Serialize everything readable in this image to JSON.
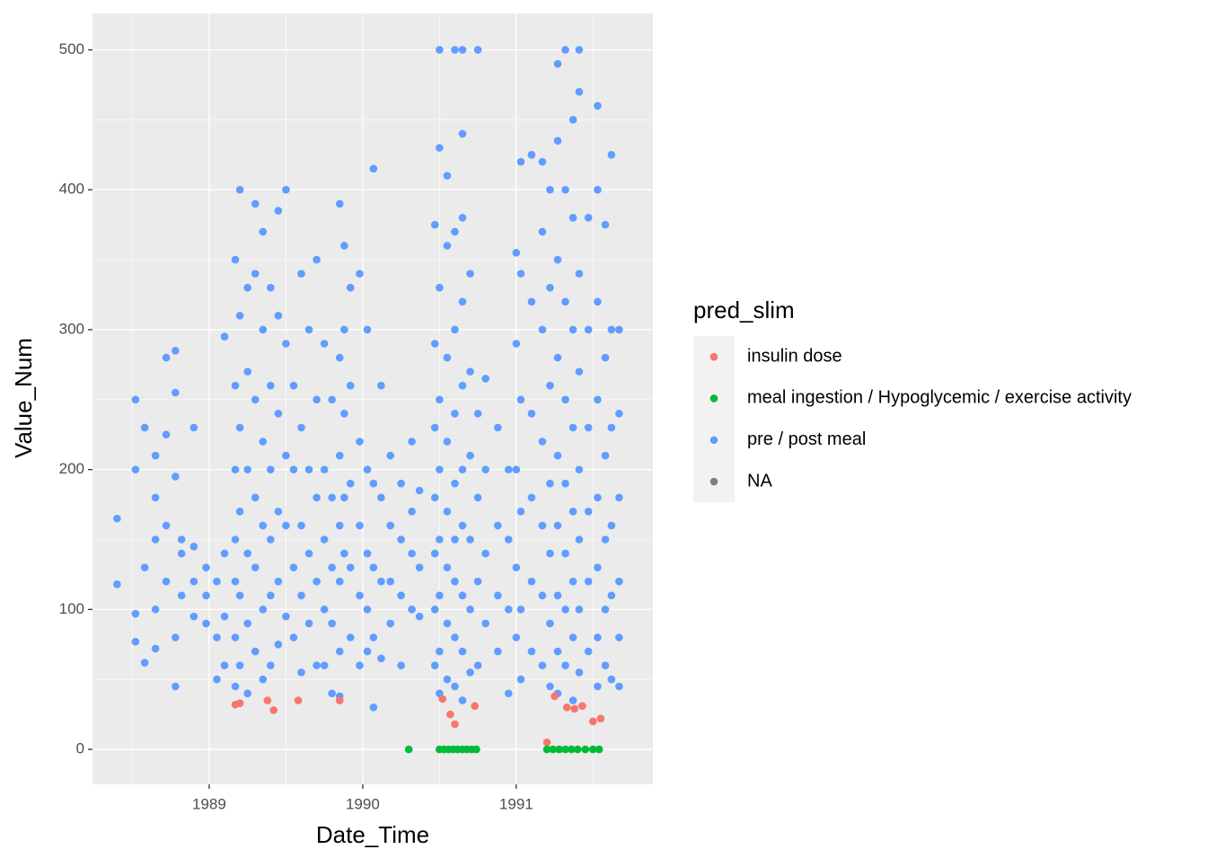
{
  "chart_data": {
    "type": "scatter",
    "x_label": "Date_Time",
    "y_label": "Value_Num",
    "legend_title": "pred_slim",
    "xlim": [
      1988.24,
      1991.89
    ],
    "ylim": [
      -25,
      526
    ],
    "xticks": [
      1989,
      1990,
      1991
    ],
    "yticks": [
      0,
      100,
      200,
      300,
      400,
      500
    ],
    "grid": true,
    "legend_position": "right",
    "series": [
      {
        "name": "insulin dose",
        "color": "#F8766D",
        "x": [
          1989.17,
          1989.2,
          1989.38,
          1989.42,
          1989.58,
          1989.85,
          1990.52,
          1990.57,
          1990.6,
          1990.73,
          1991.2,
          1991.25,
          1991.33,
          1991.38,
          1991.43,
          1991.5,
          1991.55
        ],
        "values": [
          32,
          33,
          35,
          28,
          35,
          35,
          36,
          25,
          18,
          31,
          5,
          38,
          30,
          29,
          31,
          20,
          22
        ]
      },
      {
        "name": "meal ingestion / Hypoglycemic / exercise activity",
        "color": "#00BA38",
        "x": [
          1990.3,
          1990.5,
          1990.53,
          1990.56,
          1990.59,
          1990.62,
          1990.65,
          1990.68,
          1990.71,
          1990.74,
          1991.2,
          1991.24,
          1991.28,
          1991.32,
          1991.36,
          1991.4,
          1991.45,
          1991.5,
          1991.54
        ],
        "values": [
          0,
          0,
          0,
          0,
          0,
          0,
          0,
          0,
          0,
          0,
          0,
          0,
          0,
          0,
          0,
          0,
          0,
          0,
          0
        ]
      },
      {
        "name": "pre / post meal",
        "color": "#619CFF",
        "x": [
          1988.4,
          1988.4,
          1988.52,
          1988.52,
          1988.52,
          1988.52,
          1988.58,
          1988.58,
          1988.58,
          1988.65,
          1988.65,
          1988.65,
          1988.65,
          1988.65,
          1988.72,
          1988.72,
          1988.72,
          1988.72,
          1988.78,
          1988.78,
          1988.78,
          1988.78,
          1988.78,
          1988.82,
          1988.82,
          1988.82,
          1988.9,
          1988.9,
          1988.9,
          1988.9,
          1988.98,
          1988.98,
          1988.98,
          1989.05,
          1989.05,
          1989.05,
          1989.1,
          1989.1,
          1989.1,
          1989.1,
          1989.17,
          1989.17,
          1989.17,
          1989.17,
          1989.17,
          1989.17,
          1989.17,
          1989.2,
          1989.2,
          1989.2,
          1989.2,
          1989.2,
          1989.2,
          1989.25,
          1989.25,
          1989.25,
          1989.25,
          1989.25,
          1989.25,
          1989.3,
          1989.3,
          1989.3,
          1989.3,
          1989.3,
          1989.3,
          1989.35,
          1989.35,
          1989.35,
          1989.35,
          1989.35,
          1989.35,
          1989.4,
          1989.4,
          1989.4,
          1989.4,
          1989.4,
          1989.4,
          1989.45,
          1989.45,
          1989.45,
          1989.45,
          1989.45,
          1989.45,
          1989.5,
          1989.5,
          1989.5,
          1989.5,
          1989.5,
          1989.55,
          1989.55,
          1989.55,
          1989.55,
          1989.6,
          1989.6,
          1989.6,
          1989.6,
          1989.6,
          1989.65,
          1989.65,
          1989.65,
          1989.65,
          1989.7,
          1989.7,
          1989.7,
          1989.7,
          1989.7,
          1989.75,
          1989.75,
          1989.75,
          1989.75,
          1989.75,
          1989.8,
          1989.8,
          1989.8,
          1989.8,
          1989.8,
          1989.85,
          1989.85,
          1989.85,
          1989.85,
          1989.85,
          1989.85,
          1989.85,
          1989.88,
          1989.88,
          1989.88,
          1989.88,
          1989.88,
          1989.92,
          1989.92,
          1989.92,
          1989.92,
          1989.92,
          1989.98,
          1989.98,
          1989.98,
          1989.98,
          1989.98,
          1990.03,
          1990.03,
          1990.03,
          1990.03,
          1990.03,
          1990.07,
          1990.07,
          1990.07,
          1990.07,
          1990.07,
          1990.12,
          1990.12,
          1990.12,
          1990.12,
          1990.18,
          1990.18,
          1990.18,
          1990.18,
          1990.25,
          1990.25,
          1990.25,
          1990.25,
          1990.32,
          1990.32,
          1990.32,
          1990.32,
          1990.37,
          1990.37,
          1990.37,
          1990.47,
          1990.47,
          1990.47,
          1990.47,
          1990.47,
          1990.47,
          1990.47,
          1990.5,
          1990.5,
          1990.5,
          1990.5,
          1990.5,
          1990.5,
          1990.5,
          1990.5,
          1990.5,
          1990.55,
          1990.55,
          1990.55,
          1990.55,
          1990.55,
          1990.55,
          1990.55,
          1990.55,
          1990.6,
          1990.6,
          1990.6,
          1990.6,
          1990.6,
          1990.6,
          1990.6,
          1990.6,
          1990.6,
          1990.65,
          1990.65,
          1990.65,
          1990.65,
          1990.65,
          1990.65,
          1990.65,
          1990.65,
          1990.65,
          1990.65,
          1990.7,
          1990.7,
          1990.7,
          1990.7,
          1990.7,
          1990.7,
          1990.75,
          1990.75,
          1990.75,
          1990.75,
          1990.75,
          1990.8,
          1990.8,
          1990.8,
          1990.8,
          1990.88,
          1990.88,
          1990.88,
          1990.88,
          1990.95,
          1990.95,
          1990.95,
          1990.95,
          1991.0,
          1991.0,
          1991.0,
          1991.0,
          1991.0,
          1991.03,
          1991.03,
          1991.03,
          1991.03,
          1991.03,
          1991.03,
          1991.1,
          1991.1,
          1991.1,
          1991.1,
          1991.1,
          1991.1,
          1991.17,
          1991.17,
          1991.17,
          1991.17,
          1991.17,
          1991.17,
          1991.17,
          1991.22,
          1991.22,
          1991.22,
          1991.22,
          1991.22,
          1991.22,
          1991.22,
          1991.27,
          1991.27,
          1991.27,
          1991.27,
          1991.27,
          1991.27,
          1991.27,
          1991.27,
          1991.27,
          1991.32,
          1991.32,
          1991.32,
          1991.32,
          1991.32,
          1991.32,
          1991.32,
          1991.32,
          1991.37,
          1991.37,
          1991.37,
          1991.37,
          1991.37,
          1991.37,
          1991.37,
          1991.37,
          1991.41,
          1991.41,
          1991.41,
          1991.41,
          1991.41,
          1991.41,
          1991.41,
          1991.41,
          1991.47,
          1991.47,
          1991.47,
          1991.47,
          1991.47,
          1991.47,
          1991.53,
          1991.53,
          1991.53,
          1991.53,
          1991.53,
          1991.53,
          1991.53,
          1991.53,
          1991.58,
          1991.58,
          1991.58,
          1991.58,
          1991.58,
          1991.58,
          1991.62,
          1991.62,
          1991.62,
          1991.62,
          1991.62,
          1991.62,
          1991.67,
          1991.67,
          1991.67,
          1991.67,
          1991.67,
          1991.67
        ],
        "values": [
          118,
          165,
          250,
          200,
          97,
          77,
          130,
          230,
          62,
          210,
          180,
          150,
          100,
          72,
          280,
          225,
          160,
          120,
          285,
          255,
          195,
          80,
          45,
          150,
          140,
          110,
          145,
          120,
          95,
          230,
          130,
          110,
          90,
          120,
          80,
          50,
          140,
          95,
          60,
          295,
          350,
          260,
          200,
          150,
          120,
          80,
          45,
          400,
          310,
          230,
          170,
          110,
          60,
          330,
          270,
          200,
          140,
          90,
          40,
          390,
          340,
          250,
          180,
          130,
          70,
          370,
          300,
          220,
          160,
          100,
          50,
          330,
          260,
          200,
          150,
          110,
          60,
          385,
          310,
          240,
          170,
          120,
          75,
          400,
          290,
          210,
          160,
          95,
          260,
          200,
          130,
          80,
          340,
          230,
          160,
          110,
          55,
          300,
          200,
          140,
          90,
          350,
          250,
          180,
          120,
          60,
          290,
          200,
          150,
          100,
          60,
          250,
          180,
          130,
          90,
          40,
          390,
          280,
          210,
          160,
          120,
          70,
          38,
          360,
          300,
          240,
          180,
          140,
          330,
          260,
          190,
          130,
          80,
          340,
          220,
          160,
          110,
          60,
          300,
          200,
          140,
          100,
          70,
          415,
          190,
          130,
          80,
          30,
          260,
          180,
          120,
          65,
          210,
          160,
          120,
          90,
          190,
          150,
          110,
          60,
          220,
          170,
          140,
          100,
          185,
          130,
          95,
          375,
          290,
          230,
          180,
          140,
          100,
          60,
          500,
          430,
          330,
          250,
          200,
          150,
          110,
          70,
          40,
          410,
          360,
          280,
          220,
          170,
          130,
          90,
          50,
          500,
          370,
          300,
          240,
          190,
          150,
          120,
          80,
          45,
          500,
          440,
          380,
          320,
          260,
          200,
          160,
          110,
          70,
          35,
          340,
          270,
          210,
          150,
          100,
          55,
          500,
          240,
          180,
          120,
          60,
          265,
          200,
          140,
          90,
          230,
          160,
          110,
          70,
          200,
          150,
          100,
          40,
          355,
          290,
          200,
          130,
          80,
          420,
          340,
          250,
          170,
          100,
          50,
          425,
          320,
          240,
          180,
          120,
          70,
          420,
          370,
          300,
          220,
          160,
          110,
          60,
          400,
          330,
          260,
          190,
          140,
          90,
          45,
          490,
          435,
          350,
          280,
          210,
          160,
          110,
          70,
          40,
          500,
          400,
          320,
          250,
          190,
          140,
          100,
          60,
          450,
          380,
          300,
          230,
          170,
          120,
          80,
          35,
          500,
          470,
          340,
          270,
          200,
          150,
          100,
          55,
          380,
          300,
          230,
          170,
          120,
          70,
          460,
          400,
          320,
          250,
          180,
          130,
          80,
          45,
          375,
          280,
          210,
          150,
          100,
          60,
          425,
          300,
          230,
          160,
          110,
          50,
          300,
          240,
          180,
          120,
          80,
          45
        ]
      },
      {
        "name": "NA",
        "color": "#7F7F7F",
        "x": [],
        "values": []
      }
    ]
  }
}
